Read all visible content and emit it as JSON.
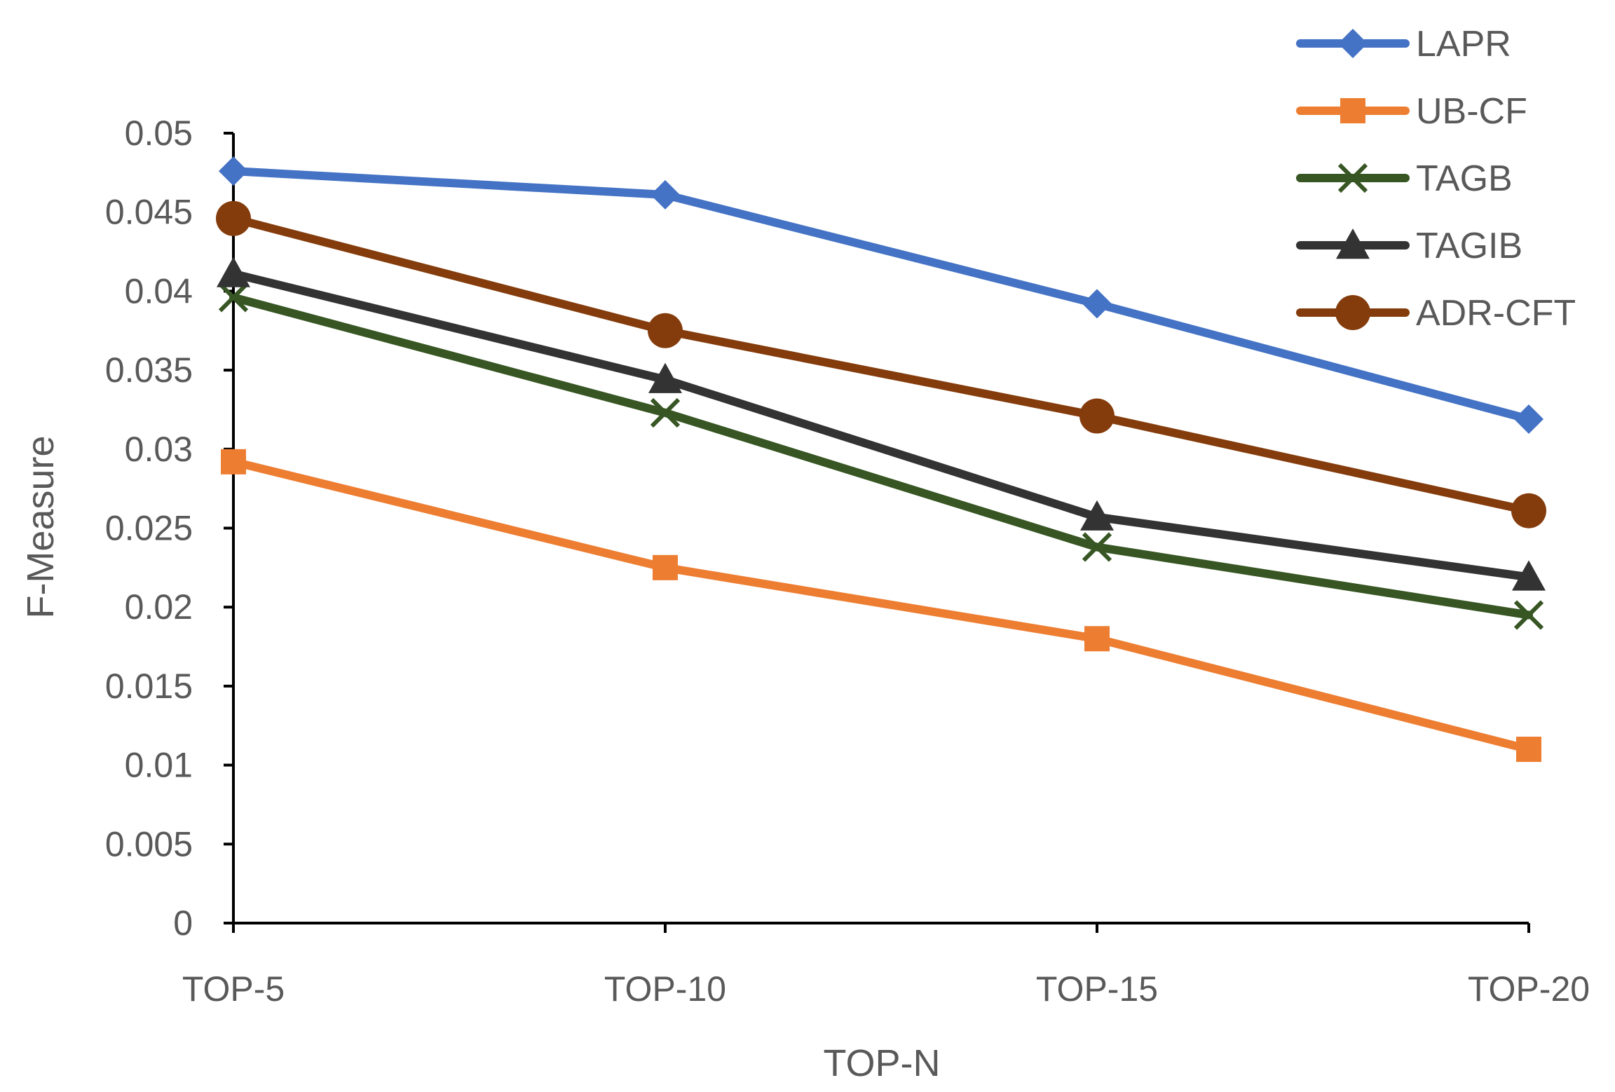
{
  "chart_data": {
    "type": "line",
    "title": "",
    "xlabel": "TOP-N",
    "ylabel": "F-Measure",
    "categories": [
      "TOP-5",
      "TOP-10",
      "TOP-15",
      "TOP-20"
    ],
    "ylim": [
      0,
      0.05
    ],
    "yticks": [
      0,
      0.005,
      0.01,
      0.015,
      0.02,
      0.025,
      0.03,
      0.035,
      0.04,
      0.045,
      0.05
    ],
    "ytick_labels": [
      "0",
      "0.005",
      "0.01",
      "0.015",
      "0.02",
      "0.025",
      "0.03",
      "0.035",
      "0.04",
      "0.045",
      "0.05"
    ],
    "grid": false,
    "legend_position": "top-right",
    "series": [
      {
        "name": "LAPR",
        "values": [
          0.0476,
          0.0461,
          0.0392,
          0.0319
        ],
        "color": "#4472C4",
        "marker": "diamond"
      },
      {
        "name": "UB-CF",
        "values": [
          0.0292,
          0.0225,
          0.018,
          0.011
        ],
        "color": "#ED7D31",
        "marker": "square"
      },
      {
        "name": "TAGB",
        "values": [
          0.0396,
          0.0323,
          0.0238,
          0.0195
        ],
        "color": "#375623",
        "marker": "x"
      },
      {
        "name": "TAGIB",
        "values": [
          0.0411,
          0.0344,
          0.0257,
          0.0219
        ],
        "color": "#333333",
        "marker": "triangle"
      },
      {
        "name": "ADR-CFT",
        "values": [
          0.0446,
          0.0375,
          0.0321,
          0.0261
        ],
        "color": "#843C0C",
        "marker": "circle"
      }
    ]
  }
}
